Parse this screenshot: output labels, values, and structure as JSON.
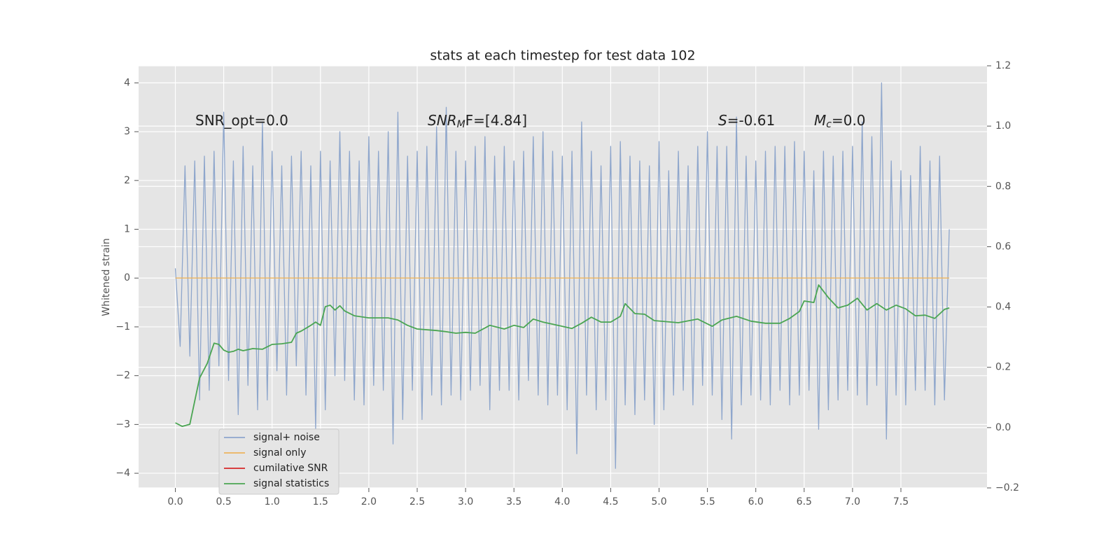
{
  "chart_data": {
    "type": "line",
    "title": "stats at each timestep for test data 102",
    "ylabel": "Whitened strain",
    "xlim": [
      -0.38,
      8.39
    ],
    "ylim": [
      -4.3,
      4.35
    ],
    "y2lim": [
      -0.2,
      1.2
    ],
    "xticks": [
      {
        "value": 0,
        "label": "0.0"
      },
      0.5,
      {
        "value": 1,
        "label": "1.0"
      },
      1.5,
      {
        "value": 2,
        "label": "2.0"
      },
      2.5,
      {
        "value": 3,
        "label": "3.0"
      },
      3.5,
      {
        "value": 4,
        "label": "4.0"
      },
      4.5,
      {
        "value": 5,
        "label": "5.0"
      },
      5.5,
      {
        "value": 6,
        "label": "6.0"
      },
      6.5,
      {
        "value": 7,
        "label": "7.0"
      },
      7.5
    ],
    "yticks": [
      {
        "value": -4,
        "label": "−4"
      },
      {
        "value": -3,
        "label": "−3"
      },
      {
        "value": -2,
        "label": "−2"
      },
      {
        "value": -1,
        "label": "−1"
      },
      0,
      1,
      2,
      3,
      4
    ],
    "y2ticks": [
      {
        "value": -0.2,
        "label": "−0.2"
      },
      {
        "value": 0,
        "label": "0.0"
      },
      0.2,
      0.4,
      0.6,
      0.8,
      {
        "value": 1,
        "label": "1.0"
      },
      1.2
    ],
    "grid": true,
    "annotations": [
      {
        "tail": "SNR_opt=0.0"
      },
      {
        "base": "SNR",
        "sub": "M",
        "tail": "F=[4.84]"
      },
      {
        "base": "S",
        "tail": "=-0.61"
      },
      {
        "base": "M",
        "sub": "c",
        "tail": "=0.0"
      }
    ],
    "series": [
      {
        "name": "signal+ noise",
        "color": "#8ea6cc",
        "x": [
          0,
          0.05,
          0.1,
          0.15,
          0.2,
          0.25,
          0.3,
          0.35,
          0.4,
          0.45,
          0.5,
          0.55,
          0.6,
          0.65,
          0.7,
          0.75,
          0.8,
          0.85,
          0.9,
          0.95,
          1,
          1.05,
          1.1,
          1.15,
          1.2,
          1.25,
          1.3,
          1.35,
          1.4,
          1.45,
          1.5,
          1.55,
          1.6,
          1.65,
          1.7,
          1.75,
          1.8,
          1.85,
          1.9,
          1.95,
          2,
          2.05,
          2.1,
          2.15,
          2.2,
          2.25,
          2.3,
          2.35,
          2.4,
          2.45,
          2.5,
          2.55,
          2.6,
          2.65,
          2.7,
          2.75,
          2.8,
          2.85,
          2.9,
          2.95,
          3,
          3.05,
          3.1,
          3.15,
          3.2,
          3.25,
          3.3,
          3.35,
          3.4,
          3.45,
          3.5,
          3.55,
          3.6,
          3.65,
          3.7,
          3.75,
          3.8,
          3.85,
          3.9,
          3.95,
          4,
          4.05,
          4.1,
          4.15,
          4.2,
          4.25,
          4.3,
          4.35,
          4.4,
          4.45,
          4.5,
          4.55,
          4.6,
          4.65,
          4.7,
          4.75,
          4.8,
          4.85,
          4.9,
          4.95,
          5,
          5.05,
          5.1,
          5.15,
          5.2,
          5.25,
          5.3,
          5.35,
          5.4,
          5.45,
          5.5,
          5.55,
          5.6,
          5.65,
          5.7,
          5.75,
          5.8,
          5.85,
          5.9,
          5.95,
          6,
          6.05,
          6.1,
          6.15,
          6.2,
          6.25,
          6.3,
          6.35,
          6.4,
          6.45,
          6.5,
          6.55,
          6.6,
          6.65,
          6.7,
          6.75,
          6.8,
          6.85,
          6.9,
          6.95,
          7,
          7.05,
          7.1,
          7.15,
          7.2,
          7.25,
          7.3,
          7.35,
          7.4,
          7.45,
          7.5,
          7.55,
          7.6,
          7.65,
          7.7,
          7.75,
          7.8,
          7.85,
          7.9,
          7.95,
          8
        ],
        "values": [
          0.2,
          -1.4,
          2.3,
          -1.6,
          2.4,
          -2.5,
          2.5,
          -2.3,
          2.6,
          -1.8,
          3.4,
          -2.1,
          2.4,
          -2.8,
          2.7,
          -2.2,
          2.3,
          -2.7,
          3.2,
          -2.5,
          2.6,
          -1.9,
          2.3,
          -2.4,
          2.5,
          -1.8,
          2.6,
          -2.4,
          2.3,
          -3.1,
          2.6,
          -2.7,
          2.4,
          -2.0,
          3.0,
          -2.1,
          2.6,
          -2.5,
          2.4,
          -2.6,
          2.9,
          -2.2,
          2.6,
          -2.3,
          3.0,
          -3.4,
          3.4,
          -2.9,
          2.5,
          -2.3,
          2.6,
          -2.9,
          2.7,
          -2.4,
          3.1,
          -2.6,
          3.5,
          -2.4,
          2.6,
          -2.5,
          2.4,
          -2.3,
          2.7,
          -2.2,
          2.9,
          -2.7,
          2.5,
          -2.3,
          2.7,
          -2.3,
          2.4,
          -2.5,
          2.6,
          -2.1,
          2.9,
          -2.4,
          3.0,
          -2.6,
          2.6,
          -2.4,
          2.5,
          -2.7,
          2.6,
          -3.6,
          3.2,
          -2.4,
          2.6,
          -2.7,
          2.3,
          -2.5,
          2.7,
          -3.9,
          2.8,
          -2.6,
          2.5,
          -2.8,
          2.4,
          -2.5,
          2.3,
          -3.0,
          2.8,
          -2.7,
          2.2,
          -2.4,
          2.6,
          -2.3,
          2.3,
          -2.6,
          2.7,
          -2.2,
          3.0,
          -2.4,
          2.7,
          -2.9,
          2.7,
          -3.3,
          3.3,
          -2.6,
          2.5,
          -2.4,
          2.4,
          -2.5,
          2.6,
          -2.6,
          2.7,
          -2.3,
          2.7,
          -2.6,
          2.8,
          -2.4,
          2.6,
          -2.3,
          2.2,
          -3.1,
          2.6,
          -2.7,
          2.5,
          -2.5,
          2.6,
          -2.3,
          2.7,
          -2.4,
          3.2,
          -2.6,
          2.9,
          -2.2,
          4.0,
          -3.3,
          2.4,
          -2.4,
          2.2,
          -2.6,
          2.1,
          -2.3,
          2.7,
          -2.3,
          2.4,
          -2.6,
          2.5,
          -2.5,
          1.0
        ]
      },
      {
        "name": "signal only",
        "color": "#ecb45c",
        "x": [
          0,
          8
        ],
        "values": [
          0,
          0
        ]
      },
      {
        "name": "cumilative SNR",
        "color": "#d62728",
        "x": [],
        "values": []
      },
      {
        "name": "signal statistics",
        "color": "#4aa552",
        "axis": "y2",
        "x": [
          0,
          0.07,
          0.15,
          0.25,
          0.33,
          0.4,
          0.45,
          0.5,
          0.55,
          0.6,
          0.65,
          0.7,
          0.8,
          0.9,
          1,
          1.1,
          1.2,
          1.25,
          1.3,
          1.4,
          1.45,
          1.5,
          1.55,
          1.6,
          1.65,
          1.7,
          1.75,
          1.85,
          2,
          2.2,
          2.3,
          2.4,
          2.5,
          2.7,
          2.8,
          2.9,
          3,
          3.1,
          3.25,
          3.4,
          3.5,
          3.6,
          3.7,
          3.8,
          3.9,
          4.1,
          4.2,
          4.3,
          4.4,
          4.5,
          4.6,
          4.65,
          4.75,
          4.85,
          4.95,
          5.2,
          5.4,
          5.55,
          5.65,
          5.8,
          5.95,
          6.1,
          6.25,
          6.35,
          6.45,
          6.5,
          6.6,
          6.65,
          6.75,
          6.85,
          6.95,
          7.05,
          7.15,
          7.25,
          7.35,
          7.45,
          7.55,
          7.65,
          7.75,
          7.85,
          7.95,
          8
        ],
        "values": [
          0.016,
          0.004,
          0.011,
          0.164,
          0.213,
          0.28,
          0.276,
          0.257,
          0.25,
          0.253,
          0.26,
          0.255,
          0.262,
          0.26,
          0.276,
          0.278,
          0.283,
          0.313,
          0.32,
          0.339,
          0.35,
          0.339,
          0.401,
          0.406,
          0.39,
          0.404,
          0.387,
          0.371,
          0.364,
          0.364,
          0.357,
          0.339,
          0.327,
          0.322,
          0.318,
          0.313,
          0.316,
          0.313,
          0.339,
          0.327,
          0.339,
          0.332,
          0.36,
          0.35,
          0.343,
          0.329,
          0.346,
          0.366,
          0.35,
          0.35,
          0.369,
          0.411,
          0.378,
          0.376,
          0.355,
          0.348,
          0.36,
          0.336,
          0.357,
          0.369,
          0.353,
          0.346,
          0.346,
          0.362,
          0.385,
          0.42,
          0.415,
          0.473,
          0.431,
          0.397,
          0.406,
          0.429,
          0.39,
          0.411,
          0.39,
          0.406,
          0.394,
          0.371,
          0.373,
          0.362,
          0.392,
          0.397
        ]
      }
    ]
  }
}
